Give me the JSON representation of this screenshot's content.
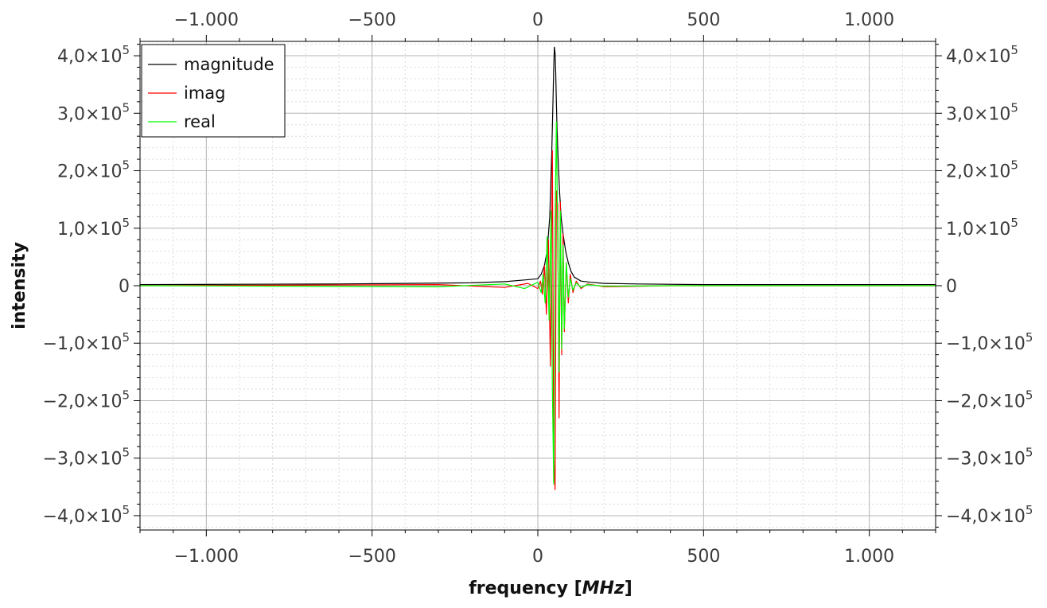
{
  "chart_data": {
    "type": "line",
    "xlabel": "frequency",
    "xunit": "MHz",
    "ylabel": "intensity",
    "xlim": [
      -1200,
      1200
    ],
    "ylim": [
      -425000,
      425000
    ],
    "x_ticks": [
      -1000,
      -500,
      0,
      500,
      1000
    ],
    "x_tick_labels": [
      "−1.000",
      "−500",
      "0",
      "500",
      "1.000"
    ],
    "y_ticks": [
      -400000,
      -300000,
      -200000,
      -100000,
      0,
      100000,
      200000,
      300000,
      400000
    ],
    "y_tick_mantissa": [
      "−4,0×10",
      "−3,0×10",
      "−2,0×10",
      "−1,0×10",
      "0",
      "1,0×10",
      "2,0×10",
      "3,0×10",
      "4,0×10"
    ],
    "y_tick_exponent": [
      "5",
      "5",
      "5",
      "5",
      "",
      "5",
      "5",
      "5",
      "5"
    ],
    "grid": true,
    "legend_position": "top-left",
    "series": [
      {
        "name": "magnitude",
        "color": "#000000",
        "x": [
          -1200,
          -600,
          -200,
          -100,
          -40,
          0,
          10,
          20,
          28,
          36,
          42,
          46,
          48,
          50,
          52,
          54,
          56,
          58,
          62,
          66,
          70,
          76,
          84,
          92,
          100,
          110,
          130,
          160,
          200,
          300,
          500,
          800,
          1200
        ],
        "y": [
          2000,
          3000,
          5000,
          7000,
          10000,
          12000,
          20000,
          35000,
          60000,
          120000,
          230000,
          330000,
          380000,
          415000,
          405000,
          370000,
          320000,
          270000,
          210000,
          160000,
          120000,
          90000,
          60000,
          40000,
          25000,
          15000,
          8000,
          6000,
          4000,
          3000,
          2000,
          2000,
          2000
        ]
      },
      {
        "name": "imag",
        "color": "#ff0000",
        "x": [
          -1200,
          -300,
          -100,
          -30,
          0,
          8,
          14,
          20,
          26,
          32,
          38,
          44,
          48,
          52,
          56,
          60,
          64,
          68,
          72,
          76,
          80,
          86,
          92,
          98,
          106,
          116,
          130,
          150,
          200,
          400,
          1200
        ],
        "y": [
          0,
          2000,
          -3000,
          4000,
          -5000,
          8000,
          -15000,
          35000,
          -50000,
          80000,
          -140000,
          235000,
          -300000,
          -355000,
          165000,
          140000,
          -230000,
          145000,
          -120000,
          90000,
          -80000,
          40000,
          -30000,
          20000,
          -12000,
          8000,
          -5000,
          3000,
          -2000,
          0,
          0
        ]
      },
      {
        "name": "real",
        "color": "#00ff00",
        "x": [
          -1200,
          -300,
          -100,
          -40,
          0,
          10,
          16,
          22,
          28,
          34,
          40,
          44,
          48,
          52,
          56,
          60,
          64,
          68,
          72,
          76,
          80,
          86,
          92,
          98,
          106,
          116,
          130,
          150,
          200,
          400,
          1200
        ],
        "y": [
          0,
          -2000,
          3000,
          -5000,
          6000,
          -12000,
          20000,
          -30000,
          85000,
          -60000,
          130000,
          -180000,
          -345000,
          100000,
          285000,
          80000,
          -150000,
          130000,
          -110000,
          70000,
          -75000,
          40000,
          -20000,
          12000,
          -8000,
          5000,
          -3000,
          2000,
          -1000,
          0,
          0
        ]
      }
    ]
  }
}
